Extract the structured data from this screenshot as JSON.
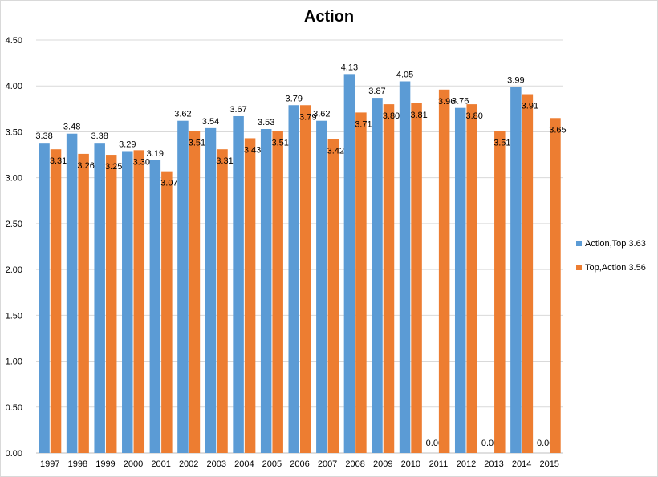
{
  "chart_data": {
    "type": "bar",
    "title": "Action",
    "categories": [
      "1997",
      "1998",
      "1999",
      "2000",
      "2001",
      "2002",
      "2003",
      "2004",
      "2005",
      "2006",
      "2007",
      "2008",
      "2009",
      "2010",
      "2011",
      "2012",
      "2013",
      "2014",
      "2015"
    ],
    "series": [
      {
        "name": "Action,Top 3.63",
        "color": "#5b9bd5",
        "values": [
          3.38,
          3.48,
          3.38,
          3.29,
          3.19,
          3.62,
          3.54,
          3.67,
          3.53,
          3.79,
          3.62,
          4.13,
          3.87,
          4.05,
          0,
          3.76,
          0,
          3.99,
          0
        ],
        "labels": [
          "3.38",
          "3.48",
          "3.38",
          "3.29",
          "3.19",
          "3.62",
          "3.54",
          "3.67",
          "3.53",
          "3.79",
          "3.62",
          "4.13",
          "3.87",
          "4.05",
          "0.00",
          "3.76",
          "0.00",
          "3.99",
          "0.00"
        ]
      },
      {
        "name": "Top,Action 3.56",
        "color": "#ed7d31",
        "values": [
          3.31,
          3.26,
          3.25,
          3.3,
          3.07,
          3.51,
          3.31,
          3.43,
          3.51,
          3.79,
          3.42,
          3.71,
          3.8,
          3.81,
          3.96,
          3.8,
          3.51,
          3.91,
          3.65
        ],
        "labels": [
          "3.31",
          "3.26",
          "3.25",
          "3.30",
          "3.07",
          "3.51",
          "3.31",
          "3.43",
          "3.51",
          "3.79",
          "3.42",
          "3.71",
          "3.80",
          "3.81",
          "3.96",
          "3.80",
          "3.51",
          "3.91",
          "3.65"
        ]
      }
    ],
    "ylim": [
      0,
      4.5
    ],
    "yticks": [
      "0.00",
      "0.50",
      "1.00",
      "1.50",
      "2.00",
      "2.50",
      "3.00",
      "3.50",
      "4.00",
      "4.50"
    ],
    "grid": true,
    "legend_position": "right"
  }
}
